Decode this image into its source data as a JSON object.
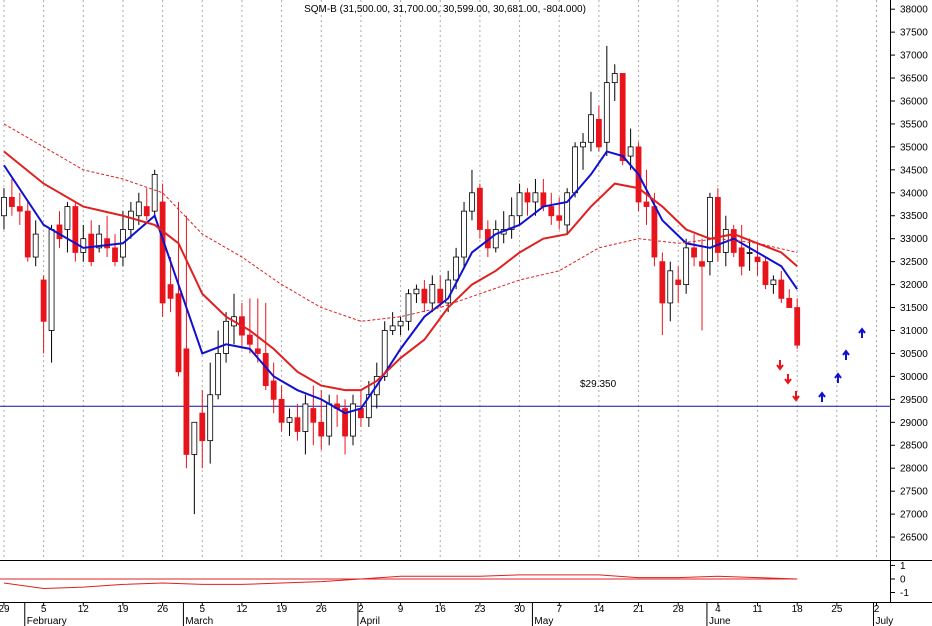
{
  "chart_data": {
    "type": "candlestick",
    "title": "SQM-B (31,500.00, 31,700.00, 30,599.00, 30,681.00, -804.000)",
    "xlim": [
      -0.5,
      111.7
    ],
    "ylim": [
      26000,
      38200
    ],
    "yticks": [
      26500,
      27000,
      27500,
      28000,
      28500,
      29000,
      29500,
      30000,
      30500,
      31000,
      31500,
      32000,
      32500,
      33000,
      33500,
      34000,
      34500,
      35000,
      35500,
      36000,
      36500,
      37000,
      37500,
      38000
    ],
    "xticks": [
      {
        "value": 0,
        "label": "29"
      },
      {
        "value": 5,
        "label": "5"
      },
      {
        "value": 10,
        "label": "12"
      },
      {
        "value": 15,
        "label": "19"
      },
      {
        "value": 20,
        "label": "26"
      },
      {
        "value": 25,
        "label": "5"
      },
      {
        "value": 30,
        "label": "12"
      },
      {
        "value": 35,
        "label": "19"
      },
      {
        "value": 40,
        "label": "26"
      },
      {
        "value": 45,
        "label": "2"
      },
      {
        "value": 50,
        "label": "9"
      },
      {
        "value": 55,
        "label": "16"
      },
      {
        "value": 60,
        "label": "23"
      },
      {
        "value": 65,
        "label": "30"
      },
      {
        "value": 70,
        "label": "7"
      },
      {
        "value": 75,
        "label": "14"
      },
      {
        "value": 80,
        "label": "21"
      },
      {
        "value": 85,
        "label": "28"
      },
      {
        "value": 90,
        "label": "4"
      },
      {
        "value": 95,
        "label": "11"
      },
      {
        "value": 100,
        "label": "18"
      },
      {
        "value": 105,
        "label": "25"
      },
      {
        "value": 110,
        "label": "2"
      }
    ],
    "months": [
      {
        "value": 3,
        "label": "February"
      },
      {
        "value": 23,
        "label": "March"
      },
      {
        "value": 45,
        "label": "April"
      },
      {
        "value": 67,
        "label": "May"
      },
      {
        "value": 89,
        "label": "June"
      },
      {
        "value": 110,
        "label": "July"
      }
    ],
    "grid": true,
    "candles": {
      "open": [
        33500,
        33900,
        33700,
        33600,
        32600,
        32100,
        31000,
        33300,
        33200,
        33700,
        32700,
        33100,
        32800,
        33000,
        32800,
        32600,
        33200,
        33500,
        33700,
        33600,
        33800,
        32000,
        31800,
        30600,
        28300,
        29200,
        28600,
        29600,
        30500,
        31100,
        31300,
        30900,
        30600,
        30500,
        29900,
        29500,
        29000,
        29100,
        28800,
        29300,
        29000,
        28700,
        29400,
        29300,
        28700,
        29300,
        29100,
        29600,
        30000,
        31000,
        31100,
        31200,
        31800,
        31900,
        31600,
        31900,
        31600,
        32100,
        32600,
        33600,
        34100,
        33200,
        32800,
        33100,
        33200,
        33500,
        34000,
        33800,
        34000,
        33700,
        33500,
        33300,
        34000,
        35000,
        35100,
        35600,
        35100,
        36400,
        36600,
        34800,
        35000,
        33800,
        33700,
        32500,
        31600,
        32100,
        32000,
        32800,
        32500,
        32500,
        33900,
        32700,
        33200,
        32800,
        32700,
        32600,
        32500,
        32000,
        32100,
        31700,
        31500
      ],
      "high": [
        34100,
        34300,
        34000,
        33800,
        33400,
        32200,
        33300,
        33600,
        33800,
        33800,
        33300,
        33400,
        33300,
        33500,
        33100,
        33600,
        33800,
        34000,
        34100,
        34500,
        34200,
        32600,
        33800,
        33500,
        29000,
        29700,
        30300,
        31000,
        31400,
        31800,
        31600,
        31700,
        31700,
        31600,
        30300,
        29800,
        29300,
        29400,
        29600,
        29800,
        29700,
        29600,
        29600,
        29500,
        29600,
        29700,
        29900,
        30300,
        31200,
        31400,
        31300,
        31900,
        32000,
        32100,
        32200,
        32200,
        32300,
        32800,
        33800,
        34500,
        34200,
        33400,
        33400,
        33600,
        33900,
        34200,
        34100,
        34300,
        34300,
        34000,
        33900,
        34100,
        35100,
        35300,
        36200,
        35900,
        37200,
        36800,
        36600,
        35400,
        35100,
        34500,
        34000,
        32700,
        32500,
        32400,
        33000,
        33100,
        33000,
        34000,
        34100,
        33500,
        33300,
        33300,
        33000,
        32900,
        32600,
        32200,
        32300,
        31900,
        31700
      ],
      "low": [
        33200,
        33500,
        33300,
        32500,
        32400,
        30500,
        30300,
        32800,
        32700,
        32500,
        32500,
        32400,
        32700,
        32600,
        32400,
        32400,
        33000,
        33300,
        33400,
        33500,
        31300,
        31400,
        30000,
        28000,
        27000,
        28000,
        28100,
        29500,
        30300,
        30700,
        30600,
        30500,
        30300,
        29700,
        29200,
        28800,
        28700,
        28600,
        28300,
        28500,
        28400,
        28500,
        28900,
        28300,
        28500,
        28900,
        28900,
        29300,
        29900,
        30900,
        30900,
        31000,
        31600,
        31400,
        31400,
        31500,
        31400,
        31900,
        32400,
        33400,
        33000,
        32600,
        32700,
        32900,
        33000,
        33300,
        33500,
        33500,
        33600,
        33300,
        33200,
        33100,
        33900,
        34500,
        34900,
        34900,
        34800,
        36000,
        34600,
        34500,
        33600,
        33300,
        32400,
        30900,
        31200,
        31600,
        31800,
        32400,
        31000,
        32200,
        32500,
        32400,
        32600,
        32200,
        32300,
        32200,
        31900,
        31800,
        31600,
        31500,
        30599
      ],
      "close": [
        33900,
        33700,
        33600,
        32600,
        33100,
        31200,
        33200,
        33000,
        33700,
        32700,
        33000,
        32500,
        33100,
        32800,
        32500,
        33200,
        33600,
        33800,
        33500,
        34400,
        31600,
        31700,
        30100,
        28300,
        29000,
        28600,
        29600,
        30500,
        31200,
        31300,
        30900,
        30700,
        30500,
        29800,
        29500,
        29000,
        29100,
        28800,
        29400,
        29000,
        28700,
        29400,
        29300,
        28700,
        29400,
        29100,
        29600,
        30000,
        31000,
        31100,
        31200,
        31800,
        31900,
        31600,
        32000,
        31600,
        32100,
        32600,
        33600,
        34000,
        33200,
        32800,
        33200,
        33200,
        33500,
        34000,
        33800,
        34000,
        33700,
        33500,
        33400,
        34000,
        35000,
        35100,
        35700,
        35000,
        36400,
        36600,
        34700,
        35000,
        33800,
        33700,
        32600,
        31600,
        32300,
        32000,
        32800,
        32600,
        32400,
        33900,
        32700,
        33200,
        32700,
        32400,
        32700,
        32500,
        32000,
        32100,
        31700,
        31500,
        30681
      ],
      "up_color": "#ffffff",
      "down_color": "#e8141c"
    },
    "lines": [
      {
        "color": "#1010d0",
        "dash": false,
        "x": [
          0,
          5,
          10,
          15,
          19,
          22,
          25,
          28,
          31,
          34,
          37,
          40,
          43,
          45,
          47,
          50,
          53,
          56,
          59,
          62,
          65,
          68,
          71,
          74,
          76,
          78,
          80,
          83,
          86,
          89,
          92,
          95,
          98,
          100
        ],
        "values": [
          34600,
          33300,
          32800,
          32900,
          33500,
          32000,
          30500,
          30700,
          30600,
          30000,
          29700,
          29500,
          29200,
          29300,
          29800,
          30600,
          31300,
          31700,
          32700,
          33100,
          33300,
          33700,
          33800,
          34400,
          34900,
          34800,
          34400,
          33400,
          32900,
          32800,
          33000,
          32700,
          32400,
          31900
        ]
      },
      {
        "color": "#e02020",
        "dash": false,
        "x": [
          0,
          5,
          10,
          15,
          19,
          22,
          25,
          28,
          31,
          34,
          37,
          40,
          43,
          45,
          47,
          50,
          53,
          56,
          59,
          62,
          65,
          68,
          71,
          74,
          77,
          80,
          83,
          86,
          89,
          92,
          95,
          98,
          100
        ],
        "values": [
          34900,
          34200,
          33700,
          33500,
          33300,
          32900,
          31800,
          31300,
          31000,
          30600,
          30100,
          29800,
          29700,
          29700,
          29900,
          30400,
          30800,
          31500,
          32000,
          32300,
          32700,
          33000,
          33100,
          33700,
          34200,
          34100,
          33700,
          33200,
          33000,
          33100,
          32900,
          32700,
          32400
        ]
      },
      {
        "color": "#e02020",
        "dash": true,
        "x": [
          0,
          5,
          10,
          15,
          20,
          25,
          30,
          35,
          40,
          45,
          50,
          55,
          60,
          65,
          70,
          75,
          80,
          85,
          90,
          95,
          100
        ],
        "values": [
          35500,
          35000,
          34500,
          34300,
          34000,
          33100,
          32600,
          32000,
          31500,
          31200,
          31300,
          31500,
          31800,
          32100,
          32300,
          32800,
          33000,
          32900,
          33000,
          32900,
          32700
        ]
      }
    ],
    "level": {
      "value": 29350,
      "label": "$29.350"
    },
    "indicator": {
      "ylim": [
        -1.7,
        1.4
      ],
      "yticks": [
        1,
        0,
        -1
      ],
      "color": "#e02020",
      "x": [
        0,
        5,
        10,
        15,
        20,
        25,
        30,
        35,
        40,
        45,
        50,
        55,
        60,
        65,
        70,
        75,
        80,
        85,
        90,
        95,
        100
      ],
      "values": [
        -0.3,
        -0.7,
        -0.6,
        -0.4,
        -0.3,
        -0.4,
        -0.4,
        -0.3,
        -0.2,
        0,
        0.2,
        0.2,
        0.2,
        0.3,
        0.3,
        0.3,
        0.1,
        0.1,
        0.2,
        0.1,
        0
      ]
    }
  }
}
